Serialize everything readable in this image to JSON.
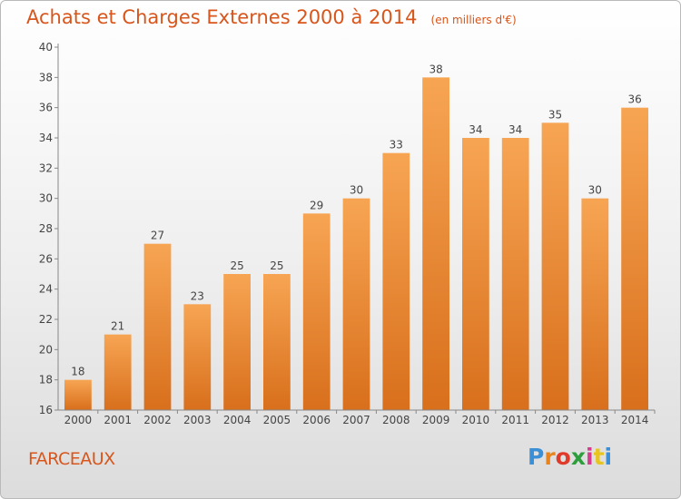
{
  "title": "Achats et Charges Externes 2000 à 2014",
  "unit": "(en milliers d'€)",
  "commune": "FARCEAUX",
  "logo": {
    "text": "Proxiti",
    "letters": [
      "P",
      "r",
      "o",
      "x",
      "i",
      "t",
      "i"
    ],
    "colors": [
      "#3a8fd6",
      "#e8841e",
      "#e03a2a",
      "#2e9e3c",
      "#d63a8c",
      "#e8c41e",
      "#3a8fd6"
    ]
  },
  "colors": {
    "bar_top": "#f7a553",
    "bar_bottom": "#d86f1c",
    "title": "#d8561c",
    "axis": "#888888",
    "text": "#444444"
  },
  "chart_data": {
    "type": "bar",
    "title": "Achats et Charges Externes 2000 à 2014",
    "subtitle": "(en milliers d'€)",
    "categories": [
      "2000",
      "2001",
      "2002",
      "2003",
      "2004",
      "2005",
      "2006",
      "2007",
      "2008",
      "2009",
      "2010",
      "2011",
      "2012",
      "2013",
      "2014"
    ],
    "values": [
      18,
      21,
      27,
      23,
      25,
      25,
      29,
      30,
      33,
      38,
      34,
      34,
      35,
      30,
      36
    ],
    "ylim": [
      16,
      40
    ],
    "yticks": [
      16,
      18,
      20,
      22,
      24,
      26,
      28,
      30,
      32,
      34,
      36,
      38,
      40
    ],
    "grid": false,
    "data_labels": true
  }
}
